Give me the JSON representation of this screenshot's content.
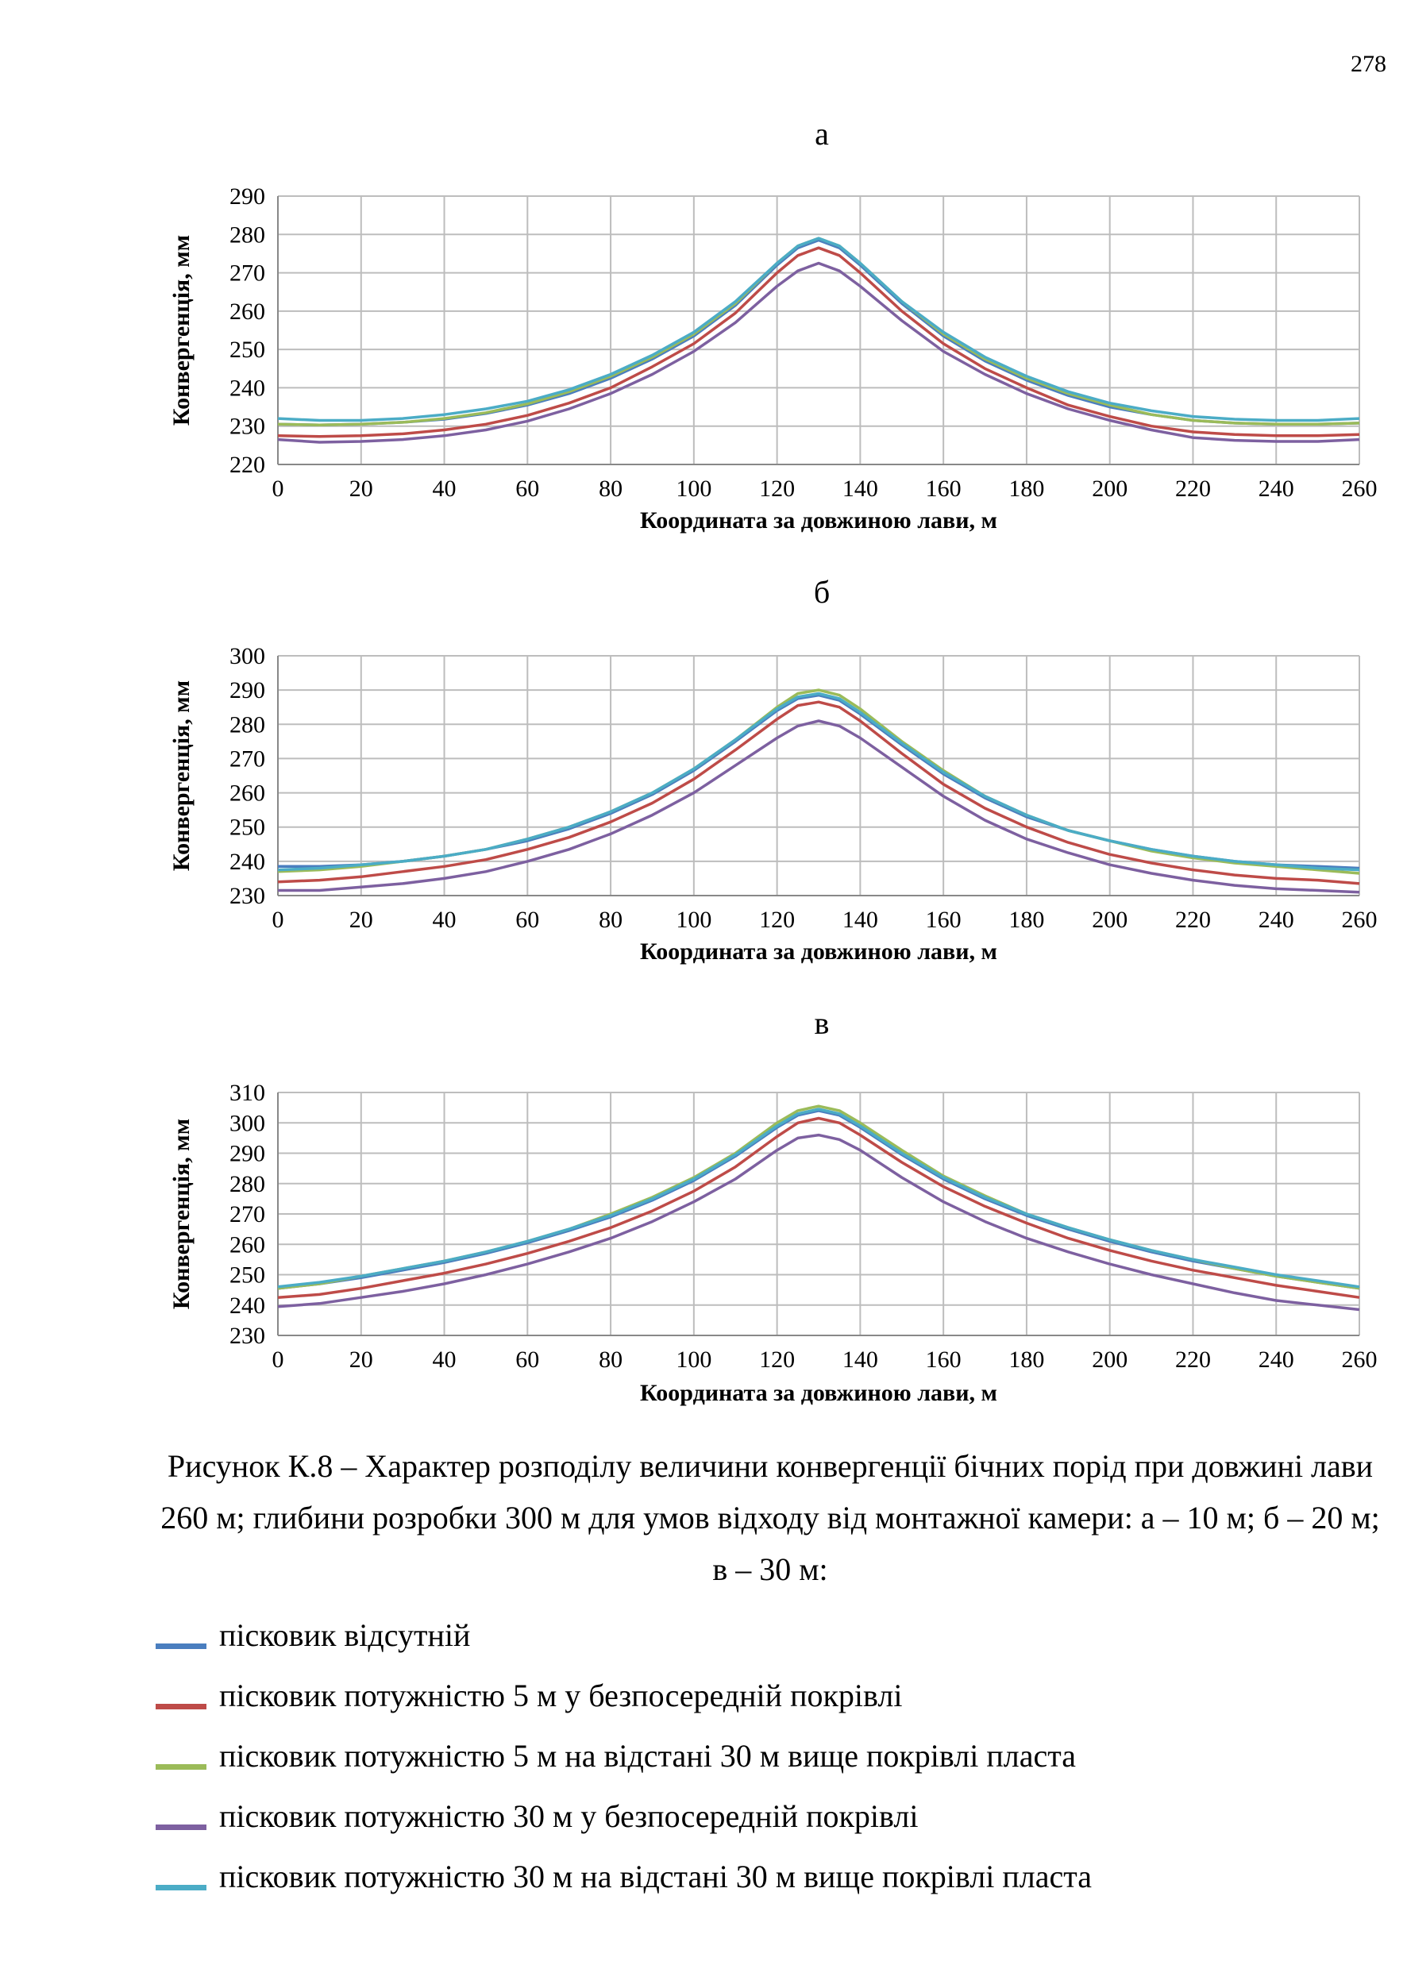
{
  "page_number": "278",
  "caption": "Рисунок  К.8 – Характер розподілу величини конвергенції бічних порід при довжині лави 260 м; глибини розробки 300 м для умов відходу від монтажної камери: а – 10 м; б – 20 м; в – 30 м:",
  "legend": [
    {
      "label": "пісковик відсутній",
      "color": "#4a7ebf"
    },
    {
      "label": "пісковик потужністю 5 м у безпосередній покрівлі",
      "color": "#be4b48"
    },
    {
      "label": "пісковик потужністю 5 м на відстані 30 м вище покрівлі пласта",
      "color": "#9bbb59"
    },
    {
      "label": "пісковик потужністю 30 м у безпосередній покрівлі",
      "color": "#7d60a0"
    },
    {
      "label": "пісковик потужністю 30 м на відстані 30 м вище покрівлі пласта",
      "color": "#4bacc6"
    }
  ],
  "chart_data": [
    {
      "type": "line",
      "panel": "а",
      "xlabel": "Координата за довжиною лави, м",
      "ylabel": "Конвергенція, мм",
      "xlim": [
        0,
        260
      ],
      "ylim": [
        220,
        290
      ],
      "xticks": [
        0,
        20,
        40,
        60,
        80,
        100,
        120,
        140,
        160,
        180,
        200,
        220,
        240,
        260
      ],
      "yticks": [
        220,
        230,
        240,
        250,
        260,
        270,
        280,
        290
      ],
      "grid": true,
      "x": [
        0,
        10,
        20,
        30,
        40,
        50,
        60,
        70,
        80,
        90,
        100,
        110,
        120,
        125,
        130,
        135,
        140,
        150,
        160,
        170,
        180,
        190,
        200,
        210,
        220,
        230,
        240,
        250,
        260
      ],
      "series": [
        {
          "name": "пісковик відсутній",
          "color": "#4a7ebf",
          "values": [
            230.5,
            230.3,
            230.5,
            231.0,
            231.8,
            233.3,
            235.5,
            238.5,
            242.5,
            247.5,
            253.5,
            261.5,
            272.0,
            276.5,
            278.5,
            276.5,
            272.0,
            262.0,
            253.5,
            247.0,
            242.0,
            238.0,
            235.0,
            233.0,
            231.5,
            230.8,
            230.5,
            230.5,
            230.8
          ]
        },
        {
          "name": "пісковик потужністю 5 м у безпосередній покрівлі",
          "color": "#be4b48",
          "values": [
            227.5,
            227.3,
            227.5,
            228.0,
            229.0,
            230.5,
            232.8,
            236.0,
            240.0,
            245.5,
            251.5,
            259.5,
            270.0,
            274.5,
            276.5,
            274.5,
            270.0,
            260.0,
            251.5,
            245.0,
            240.0,
            235.5,
            232.5,
            230.0,
            228.5,
            227.8,
            227.5,
            227.5,
            227.8
          ]
        },
        {
          "name": "пісковик потужністю 5 м на відстані 30 м вище покрівлі пласта",
          "color": "#9bbb59",
          "values": [
            230.5,
            230.3,
            230.5,
            231.0,
            232.0,
            233.5,
            235.8,
            239.0,
            243.0,
            248.0,
            254.0,
            262.0,
            272.5,
            277.0,
            279.0,
            277.0,
            272.5,
            262.5,
            254.0,
            247.5,
            242.5,
            238.5,
            235.5,
            233.0,
            231.5,
            230.8,
            230.5,
            230.5,
            230.8
          ]
        },
        {
          "name": "пісковик потужністю 30 м у безпосередній покрівлі",
          "color": "#7d60a0",
          "values": [
            226.5,
            225.8,
            226.0,
            226.5,
            227.5,
            229.0,
            231.3,
            234.5,
            238.5,
            243.5,
            249.5,
            257.0,
            266.5,
            270.5,
            272.5,
            270.5,
            266.5,
            257.5,
            249.5,
            243.5,
            238.5,
            234.5,
            231.5,
            229.0,
            227.0,
            226.3,
            226.0,
            226.0,
            226.5
          ]
        },
        {
          "name": "пісковик потужністю 30 м на відстані 30 м вище покрівлі пласта",
          "color": "#4bacc6",
          "values": [
            232.0,
            231.5,
            231.5,
            232.0,
            233.0,
            234.5,
            236.5,
            239.5,
            243.5,
            248.5,
            254.5,
            262.5,
            272.5,
            277.0,
            279.0,
            277.0,
            272.5,
            262.5,
            254.5,
            248.0,
            243.0,
            239.0,
            236.0,
            234.0,
            232.5,
            231.8,
            231.5,
            231.5,
            232.0
          ]
        }
      ]
    },
    {
      "type": "line",
      "panel": "б",
      "xlabel": "Координата за довжиною лави, м",
      "ylabel": "Конвергенція, мм",
      "xlim": [
        0,
        260
      ],
      "ylim": [
        230,
        300
      ],
      "xticks": [
        0,
        20,
        40,
        60,
        80,
        100,
        120,
        140,
        160,
        180,
        200,
        220,
        240,
        260
      ],
      "yticks": [
        230,
        240,
        250,
        260,
        270,
        280,
        290,
        300
      ],
      "grid": true,
      "x": [
        0,
        10,
        20,
        30,
        40,
        50,
        60,
        70,
        80,
        90,
        100,
        110,
        120,
        125,
        130,
        135,
        140,
        150,
        160,
        170,
        180,
        190,
        200,
        210,
        220,
        230,
        240,
        250,
        260
      ],
      "series": [
        {
          "name": "пісковик відсутній",
          "color": "#4a7ebf",
          "values": [
            238.5,
            238.5,
            239.0,
            240.0,
            241.5,
            243.5,
            246.0,
            249.5,
            254.0,
            259.5,
            266.5,
            275.0,
            284.0,
            287.5,
            288.5,
            287.0,
            283.0,
            274.0,
            265.5,
            258.5,
            253.0,
            249.0,
            246.0,
            243.5,
            241.5,
            240.0,
            239.0,
            238.5,
            238.0
          ]
        },
        {
          "name": "пісковик потужністю 5 м у безпосередній покрівлі",
          "color": "#be4b48",
          "values": [
            234.0,
            234.5,
            235.5,
            237.0,
            238.5,
            240.5,
            243.5,
            247.0,
            251.5,
            257.0,
            264.0,
            272.5,
            281.5,
            285.5,
            286.5,
            285.0,
            281.0,
            271.5,
            262.5,
            255.5,
            250.0,
            245.5,
            242.0,
            239.5,
            237.5,
            236.0,
            235.0,
            234.5,
            233.5
          ]
        },
        {
          "name": "пісковик потужністю 5 м на відстані 30 м вище покрівлі пласта",
          "color": "#9bbb59",
          "values": [
            237.0,
            237.5,
            238.5,
            240.0,
            241.5,
            243.5,
            246.5,
            250.0,
            254.5,
            260.0,
            267.0,
            275.5,
            285.0,
            289.0,
            290.0,
            288.5,
            284.5,
            275.0,
            266.5,
            259.0,
            253.5,
            249.0,
            246.0,
            243.0,
            241.0,
            239.5,
            238.5,
            237.5,
            236.5
          ]
        },
        {
          "name": "пісковик потужністю 30 м у безпосередній покрівлі",
          "color": "#7d60a0",
          "values": [
            231.5,
            231.5,
            232.5,
            233.5,
            235.0,
            237.0,
            240.0,
            243.5,
            248.0,
            253.5,
            260.0,
            268.0,
            276.0,
            279.5,
            281.0,
            279.5,
            276.0,
            267.5,
            259.0,
            252.0,
            246.5,
            242.5,
            239.0,
            236.5,
            234.5,
            233.0,
            232.0,
            231.5,
            231.0
          ]
        },
        {
          "name": "пісковик потужністю 30 м на відстані 30 м вище покрівлі пласта",
          "color": "#4bacc6",
          "values": [
            237.5,
            238.0,
            239.0,
            240.0,
            241.5,
            243.5,
            246.5,
            250.0,
            254.5,
            260.0,
            267.0,
            275.5,
            284.5,
            288.0,
            289.0,
            287.5,
            283.5,
            274.5,
            266.0,
            259.0,
            253.5,
            249.0,
            246.0,
            243.5,
            241.5,
            240.0,
            239.0,
            238.0,
            237.5
          ]
        }
      ]
    },
    {
      "type": "line",
      "panel": "в",
      "xlabel": "Координата за довжиною лави, м",
      "ylabel": "Конвергенція, мм",
      "xlim": [
        0,
        260
      ],
      "ylim": [
        230,
        310
      ],
      "xticks": [
        0,
        20,
        40,
        60,
        80,
        100,
        120,
        140,
        160,
        180,
        200,
        220,
        240,
        260
      ],
      "yticks": [
        230,
        240,
        250,
        260,
        270,
        280,
        290,
        300,
        310
      ],
      "grid": true,
      "x": [
        0,
        10,
        20,
        30,
        40,
        50,
        60,
        70,
        80,
        90,
        100,
        110,
        120,
        125,
        130,
        135,
        140,
        150,
        160,
        170,
        180,
        190,
        200,
        210,
        220,
        230,
        240,
        250,
        260
      ],
      "series": [
        {
          "name": "пісковик відсутній",
          "color": "#4a7ebf",
          "values": [
            245.5,
            247.0,
            249.0,
            251.5,
            254.0,
            257.0,
            260.5,
            264.5,
            269.0,
            274.5,
            281.0,
            289.0,
            298.5,
            302.5,
            304.0,
            302.5,
            298.5,
            289.5,
            281.5,
            275.0,
            269.5,
            265.0,
            261.0,
            257.5,
            254.5,
            252.0,
            249.5,
            247.5,
            245.5
          ]
        },
        {
          "name": "пісковик потужністю 5 м у безпосередній покрівлі",
          "color": "#be4b48",
          "values": [
            242.5,
            243.5,
            245.5,
            248.0,
            250.5,
            253.5,
            257.0,
            261.0,
            265.5,
            271.0,
            277.5,
            285.5,
            295.5,
            300.0,
            301.5,
            300.0,
            296.0,
            287.0,
            279.0,
            272.5,
            267.0,
            262.0,
            258.0,
            254.5,
            251.5,
            249.0,
            246.5,
            244.5,
            242.5
          ]
        },
        {
          "name": "пісковик потужністю 5 м на відстані 30 м вище покрівлі пласта",
          "color": "#9bbb59",
          "values": [
            245.5,
            247.0,
            249.5,
            252.0,
            254.5,
            257.5,
            261.0,
            265.0,
            270.0,
            275.5,
            282.0,
            290.0,
            300.0,
            304.0,
            305.5,
            304.0,
            300.0,
            291.0,
            282.5,
            276.0,
            270.0,
            265.5,
            261.5,
            258.0,
            255.0,
            252.0,
            249.5,
            247.5,
            245.5
          ]
        },
        {
          "name": "пісковик потужністю 30 м у безпосередній покрівлі",
          "color": "#7d60a0",
          "values": [
            239.5,
            240.5,
            242.5,
            244.5,
            247.0,
            250.0,
            253.5,
            257.5,
            262.0,
            267.5,
            274.0,
            281.5,
            291.0,
            295.0,
            296.0,
            294.5,
            291.0,
            282.0,
            274.0,
            267.5,
            262.0,
            257.5,
            253.5,
            250.0,
            247.0,
            244.0,
            241.5,
            240.0,
            238.5
          ]
        },
        {
          "name": "пісковик потужністю 30 м на відстані 30 м вище покрівлі пласта",
          "color": "#4bacc6",
          "values": [
            246.0,
            247.5,
            249.5,
            252.0,
            254.5,
            257.5,
            261.0,
            265.0,
            269.5,
            275.0,
            281.5,
            289.5,
            299.0,
            303.0,
            304.5,
            303.0,
            299.0,
            290.0,
            282.0,
            275.5,
            270.0,
            265.5,
            261.5,
            258.0,
            255.0,
            252.5,
            250.0,
            248.0,
            246.0
          ]
        }
      ]
    }
  ]
}
